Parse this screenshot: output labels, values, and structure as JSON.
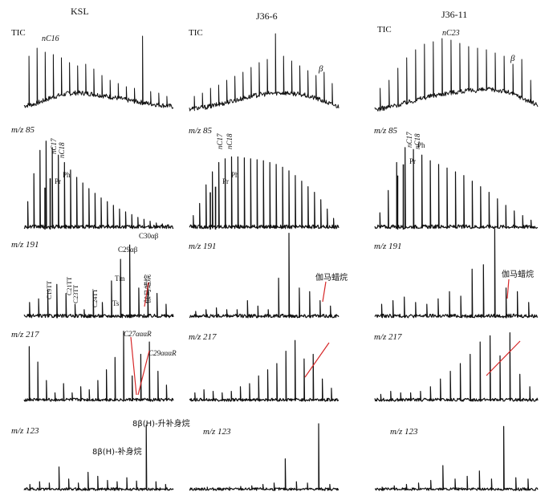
{
  "figure": {
    "columns": [
      "KSL",
      "J36-6",
      "J36-11"
    ],
    "row_labels": [
      "TIC",
      "m/z 85",
      "m/z 191",
      "m/z 217",
      "m/z 123"
    ]
  },
  "chart_data": [
    {
      "type": "line",
      "sample": "KSL",
      "trace": "TIC",
      "annotations": [
        "nC16"
      ],
      "series": [
        {
          "values": [
            0.18,
            0.22,
            0.3,
            0.4,
            0.47,
            0.52,
            0.54,
            0.53,
            0.5,
            0.46,
            0.42,
            0.38,
            0.33,
            0.29,
            0.25,
            0.22,
            0.19,
            0.16
          ]
        }
      ],
      "peaks": [
        0.7,
        0.8,
        0.75,
        0.72,
        0.68,
        0.62,
        0.58,
        0.6,
        0.54,
        0.46,
        0.4,
        0.36,
        0.32,
        0.3,
        0.95,
        0.26,
        0.24,
        0.2
      ],
      "ylim": [
        0,
        1
      ]
    },
    {
      "type": "line",
      "sample": "J36-6",
      "trace": "TIC",
      "annotations": [
        "β"
      ],
      "series": [
        {
          "values": [
            0.1,
            0.12,
            0.15,
            0.2,
            0.26,
            0.32,
            0.38,
            0.44,
            0.49,
            0.52,
            0.54,
            0.54,
            0.52,
            0.48,
            0.42,
            0.34,
            0.24,
            0.16
          ]
        }
      ],
      "peaks": [
        0.2,
        0.24,
        0.3,
        0.34,
        0.4,
        0.45,
        0.5,
        0.56,
        0.62,
        0.66,
        0.98,
        0.7,
        0.64,
        0.58,
        0.52,
        0.46,
        0.5,
        0.36
      ],
      "ylim": [
        0,
        1
      ]
    },
    {
      "type": "line",
      "sample": "J36-11",
      "trace": "TIC",
      "annotations": [
        "nC23",
        "β"
      ],
      "series": [
        {
          "values": [
            0.08,
            0.12,
            0.18,
            0.25,
            0.32,
            0.4,
            0.46,
            0.51,
            0.55,
            0.58,
            0.6,
            0.62,
            0.63,
            0.61,
            0.55,
            0.45,
            0.32,
            0.2
          ]
        }
      ],
      "peaks": [
        0.3,
        0.4,
        0.55,
        0.68,
        0.78,
        0.85,
        0.88,
        0.92,
        0.9,
        0.86,
        0.82,
        0.8,
        0.78,
        0.74,
        0.7,
        0.6,
        0.66,
        0.4
      ],
      "ylim": [
        0,
        1
      ]
    },
    {
      "type": "line",
      "sample": "KSL",
      "trace": "m/z 85",
      "annotations": [
        "nC17",
        "nC18",
        "Pr",
        "Ph"
      ],
      "peaks": [
        0.3,
        0.6,
        0.85,
        0.95,
        0.88,
        0.8,
        0.72,
        0.64,
        0.56,
        0.5,
        0.44,
        0.39,
        0.34,
        0.3,
        0.26,
        0.22,
        0.19,
        0.16,
        0.13,
        0.11,
        0.09,
        0.07,
        0.06,
        0.05
      ],
      "marked_peaks": {
        "Pr": 0.45,
        "Ph": 0.55
      },
      "ylim": [
        0,
        1
      ]
    },
    {
      "type": "line",
      "sample": "J36-6",
      "trace": "m/z 85",
      "annotations": [
        "nC17",
        "nC18",
        "Pr",
        "Ph"
      ],
      "peaks": [
        0.15,
        0.28,
        0.48,
        0.62,
        0.72,
        0.76,
        0.78,
        0.78,
        0.77,
        0.76,
        0.75,
        0.74,
        0.72,
        0.7,
        0.67,
        0.63,
        0.58,
        0.52,
        0.46,
        0.4,
        0.32,
        0.22,
        0.12
      ],
      "marked_peaks": {
        "Pr": 0.4,
        "Ph": 0.46
      },
      "ylim": [
        0,
        1
      ]
    },
    {
      "type": "line",
      "sample": "J36-11",
      "trace": "m/z 85",
      "annotations": [
        "nC17",
        "nC18",
        "Pr",
        "Ph"
      ],
      "peaks": [
        0.18,
        0.42,
        0.72,
        0.88,
        0.86,
        0.8,
        0.74,
        0.7,
        0.66,
        0.62,
        0.58,
        0.52,
        0.46,
        0.4,
        0.33,
        0.26,
        0.2,
        0.15,
        0.1
      ],
      "marked_peaks": {
        "Pr": 0.58,
        "Ph": 0.7
      },
      "ylim": [
        0,
        1
      ]
    },
    {
      "type": "line",
      "sample": "KSL",
      "trace": "m/z 191",
      "annotations": [
        "C19TT",
        "C21TT",
        "C23TT",
        "C24TT",
        "Tm",
        "Ts",
        "C29αβ",
        "C30αβ",
        "伽马蜡烷"
      ],
      "peaks": [
        0.18,
        0.22,
        0.32,
        0.38,
        0.28,
        0.16,
        0.1,
        0.3,
        0.18,
        0.42,
        0.66,
        0.82,
        0.34,
        0.38,
        0.28,
        0.16
      ],
      "ylim": [
        0,
        1
      ]
    },
    {
      "type": "line",
      "sample": "J36-6",
      "trace": "m/z 191",
      "annotations": [
        "伽马蜡烷"
      ],
      "peaks": [
        0.08,
        0.1,
        0.12,
        0.1,
        0.1,
        0.2,
        0.14,
        0.1,
        0.45,
        0.95,
        0.34,
        0.3,
        0.2,
        0.14
      ],
      "ylim": [
        0,
        1
      ]
    },
    {
      "type": "line",
      "sample": "J36-11",
      "trace": "m/z 191",
      "annotations": [
        "伽马蜡烷"
      ],
      "peaks": [
        0.16,
        0.2,
        0.24,
        0.18,
        0.16,
        0.22,
        0.3,
        0.25,
        0.55,
        0.6,
        1.0,
        0.34,
        0.3,
        0.18
      ],
      "ylim": [
        0,
        1
      ]
    },
    {
      "type": "line",
      "sample": "KSL",
      "trace": "m/z 217",
      "annotations": [
        "C27αααR",
        "C29αααR"
      ],
      "peaks": [
        0.72,
        0.52,
        0.28,
        0.12,
        0.24,
        0.12,
        0.2,
        0.16,
        0.28,
        0.42,
        0.58,
        0.92,
        0.34,
        0.62,
        0.78,
        0.4,
        0.22
      ],
      "ylim": [
        0,
        1
      ]
    },
    {
      "type": "line",
      "sample": "J36-6",
      "trace": "m/z 217",
      "annotations": [],
      "peaks": [
        0.12,
        0.16,
        0.14,
        0.12,
        0.14,
        0.2,
        0.24,
        0.34,
        0.42,
        0.5,
        0.66,
        0.8,
        0.56,
        0.62,
        0.3,
        0.18
      ],
      "ylim": [
        0,
        1
      ]
    },
    {
      "type": "line",
      "sample": "J36-11",
      "trace": "m/z 217",
      "annotations": [],
      "peaks": [
        0.1,
        0.14,
        0.12,
        0.12,
        0.14,
        0.2,
        0.3,
        0.4,
        0.5,
        0.62,
        0.78,
        0.86,
        0.6,
        0.9,
        0.36,
        0.2
      ],
      "ylim": [
        0,
        1
      ]
    },
    {
      "type": "line",
      "sample": "KSL",
      "trace": "m/z 123",
      "annotations": [
        "8β(H)-补身烷",
        "8β(H)-升补身烷"
      ],
      "peaks": [
        0.1,
        0.14,
        0.12,
        0.36,
        0.18,
        0.12,
        0.28,
        0.22,
        0.16,
        0.14,
        0.2,
        0.15,
        0.98,
        0.14,
        0.1
      ],
      "ylim": [
        0,
        1
      ]
    },
    {
      "type": "line",
      "sample": "J36-6",
      "trace": "m/z 123",
      "annotations": [],
      "peaks": [
        0.05,
        0.06,
        0.05,
        0.06,
        0.07,
        0.08,
        0.1,
        0.12,
        0.48,
        0.14,
        0.12,
        1.0,
        0.1
      ],
      "ylim": [
        0,
        1
      ]
    },
    {
      "type": "line",
      "sample": "J36-11",
      "trace": "m/z 123",
      "annotations": [],
      "peaks": [
        0.06,
        0.08,
        0.1,
        0.12,
        0.16,
        0.38,
        0.18,
        0.22,
        0.3,
        0.18,
        0.96,
        0.2,
        0.18
      ],
      "ylim": [
        0,
        1
      ]
    }
  ],
  "colors": {
    "trace": "#111111",
    "guide": "#d62728"
  }
}
